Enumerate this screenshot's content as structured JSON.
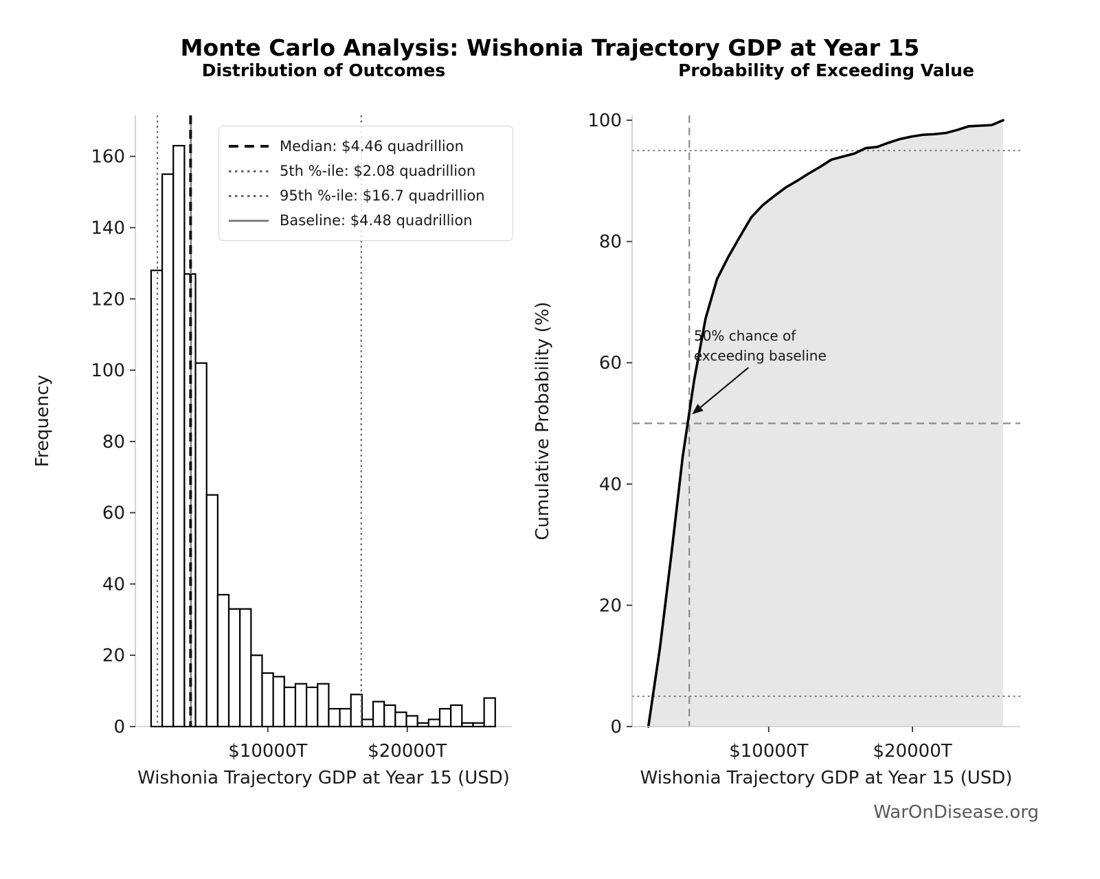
{
  "title": "Monte Carlo Analysis: Wishonia Trajectory GDP at Year 15",
  "watermark": "WarOnDisease.org",
  "colors": {
    "curve": "#000000",
    "area_fill": "#e7e7e7",
    "bar_fill": "#ffffff",
    "bar_edge": "#000000",
    "median_line": "#111111",
    "percentile_line": "#666666",
    "baseline_line": "#808080",
    "reference_dashed": "#8a8a8a",
    "reference_dotted": "#787878",
    "spine": "#c8c8c8",
    "tick": "#333333",
    "text": "#1a1a1a",
    "watermark_color": "#595959"
  },
  "chart_data": [
    {
      "type": "bar",
      "title": "Distribution of Outcomes",
      "xlabel": "Wishonia Trajectory GDP at Year 15 (USD)",
      "ylabel": "Frequency",
      "xlim": [
        500,
        27500
      ],
      "ylim": [
        0,
        171.5
      ],
      "grid": false,
      "legend_position": "upper right",
      "xticks": [
        {
          "value": 10000,
          "label": "$10000T"
        },
        {
          "value": 20000,
          "label": "$20000T"
        }
      ],
      "yticks": [
        0,
        20,
        40,
        60,
        80,
        100,
        120,
        140,
        160
      ],
      "bin_start": 1630,
      "bin_width": 796,
      "frequencies": [
        128,
        155,
        163,
        127,
        102,
        65,
        37,
        33,
        33,
        20,
        15,
        14,
        11,
        12,
        11,
        12,
        5,
        5,
        9,
        2,
        7,
        6,
        4,
        3,
        1,
        2,
        5,
        6,
        1,
        1,
        8
      ],
      "ref_lines": [
        {
          "name": "baseline",
          "value": 4480,
          "style": "solid",
          "color": "#808080",
          "label": "Baseline: $4.48 quadrillion"
        },
        {
          "name": "median",
          "value": 4460,
          "style": "dashed",
          "color": "#111111",
          "label": "Median: $4.46 quadrillion"
        },
        {
          "name": "p5",
          "value": 2080,
          "style": "dotted",
          "color": "#666666",
          "label": "5th %-ile: $2.08 quadrillion"
        },
        {
          "name": "p95",
          "value": 16700,
          "style": "dotted",
          "color": "#666666",
          "label": "95th %-ile: $16.7 quadrillion"
        }
      ]
    },
    {
      "type": "line",
      "title": "Probability of Exceeding Value",
      "xlabel": "Wishonia Trajectory GDP at Year 15 (USD)",
      "ylabel": "Cumulative Probability (%)",
      "xlim": [
        500,
        27500
      ],
      "ylim": [
        0,
        100.8
      ],
      "grid": false,
      "area_filled": true,
      "xticks": [
        {
          "value": 10000,
          "label": "$10000T"
        },
        {
          "value": 20000,
          "label": "$20000T"
        }
      ],
      "yticks": [
        0,
        20,
        40,
        60,
        80,
        100
      ],
      "x": [
        1630,
        2426,
        3222,
        4018,
        4814,
        5610,
        6406,
        7202,
        7998,
        8794,
        9590,
        10386,
        11182,
        11978,
        12774,
        13570,
        14366,
        15162,
        15958,
        16754,
        17550,
        18346,
        19142,
        19938,
        20734,
        21530,
        22326,
        23122,
        23918,
        24714,
        25510,
        26306
      ],
      "y": [
        0,
        12.8,
        28.2,
        44.5,
        57.1,
        67.3,
        73.8,
        77.5,
        80.8,
        84.0,
        86.0,
        87.5,
        88.9,
        90.0,
        91.2,
        92.3,
        93.5,
        94.0,
        94.5,
        95.4,
        95.6,
        96.3,
        96.9,
        97.3,
        97.6,
        97.7,
        97.9,
        98.4,
        99.0,
        99.1,
        99.2,
        100.0
      ],
      "reference_lines": [
        {
          "name": "p95-horizontal",
          "axis": "y",
          "value": 95,
          "style": "dotted"
        },
        {
          "name": "p5-horizontal",
          "axis": "y",
          "value": 5,
          "style": "dotted"
        },
        {
          "name": "fifty-pct-horizontal",
          "axis": "y",
          "value": 50,
          "style": "dashed"
        },
        {
          "name": "baseline-vertical",
          "axis": "x",
          "value": 4480,
          "style": "dashed"
        }
      ],
      "annotation": {
        "text": "50% chance of\nexceeding baseline",
        "arrow_tip": [
          4480,
          51.5
        ],
        "text_pos": [
          4800,
          66
        ]
      }
    }
  ]
}
